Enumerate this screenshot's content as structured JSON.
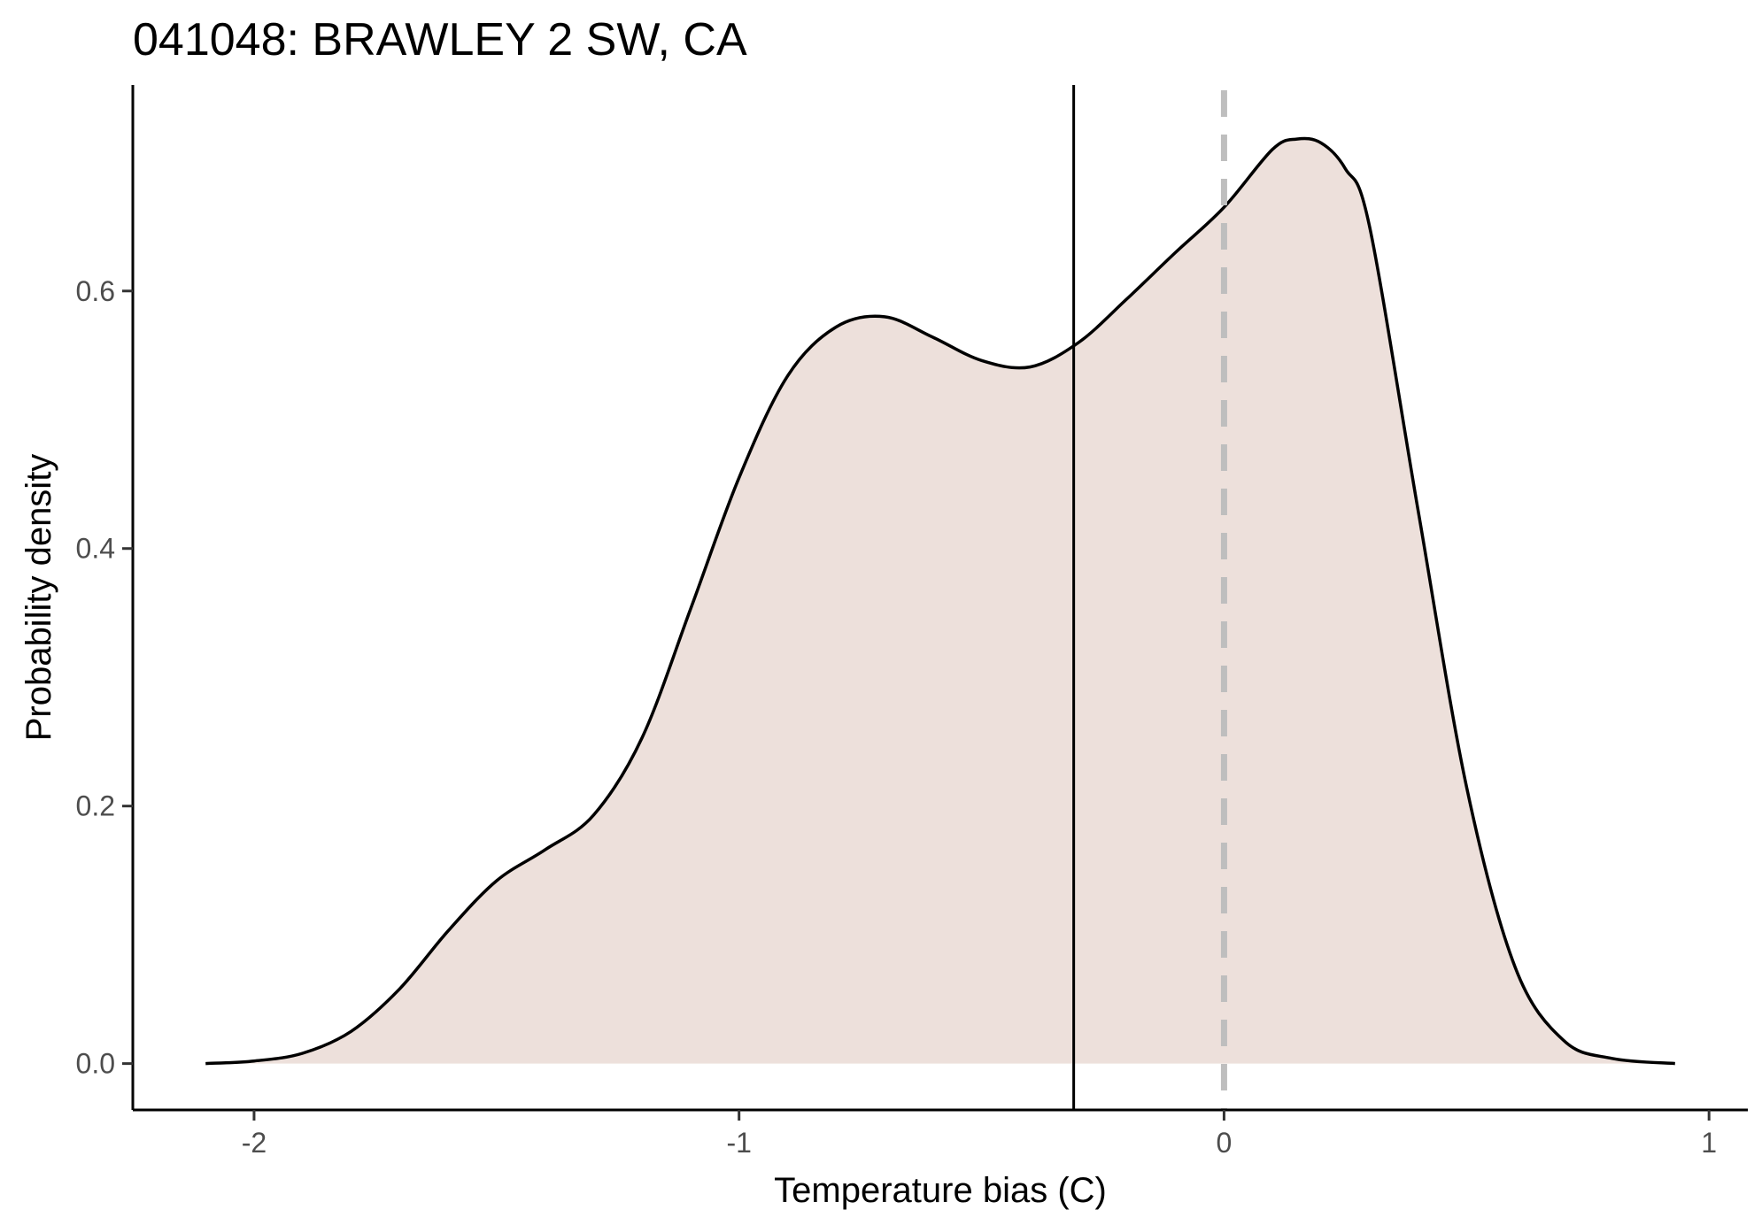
{
  "chart_data": {
    "type": "area",
    "title": "041048: BRAWLEY 2 SW, CA",
    "xlabel": "Temperature bias (C)",
    "ylabel": "Probability density",
    "xlim": [
      -2.25,
      1.08
    ],
    "ylim": [
      -0.036,
      0.76
    ],
    "x_ticks": [
      -2,
      -1,
      0,
      1
    ],
    "y_ticks": [
      0.0,
      0.2,
      0.4,
      0.6
    ],
    "x_tick_labels": [
      "-2",
      "-1",
      "0",
      "1"
    ],
    "y_tick_labels": [
      "0.0",
      "0.2",
      "0.4",
      "0.6"
    ],
    "grid": false,
    "legend": "none",
    "fill_color": "#ede0db",
    "line_color": "#000000",
    "series": [
      {
        "x": [
          -2.1,
          -2.0,
          -1.9,
          -1.8,
          -1.7,
          -1.6,
          -1.5,
          -1.4,
          -1.3,
          -1.2,
          -1.1,
          -1.0,
          -0.9,
          -0.8,
          -0.7,
          -0.6,
          -0.5,
          -0.4,
          -0.3,
          -0.2,
          -0.1,
          0.0,
          0.1,
          0.15,
          0.2,
          0.25,
          0.3,
          0.4,
          0.5,
          0.6,
          0.7,
          0.8,
          0.93
        ],
        "y": [
          0.0,
          0.002,
          0.008,
          0.025,
          0.058,
          0.103,
          0.142,
          0.166,
          0.193,
          0.253,
          0.353,
          0.455,
          0.534,
          0.572,
          0.58,
          0.564,
          0.546,
          0.541,
          0.56,
          0.594,
          0.63,
          0.665,
          0.71,
          0.718,
          0.715,
          0.695,
          0.65,
          0.43,
          0.215,
          0.075,
          0.018,
          0.004,
          0.0
        ]
      }
    ],
    "reference_lines": [
      {
        "x": -0.31,
        "style": "solid",
        "color": "#000000"
      },
      {
        "x": 0.0,
        "style": "dashed",
        "color": "#bebebe"
      }
    ]
  }
}
